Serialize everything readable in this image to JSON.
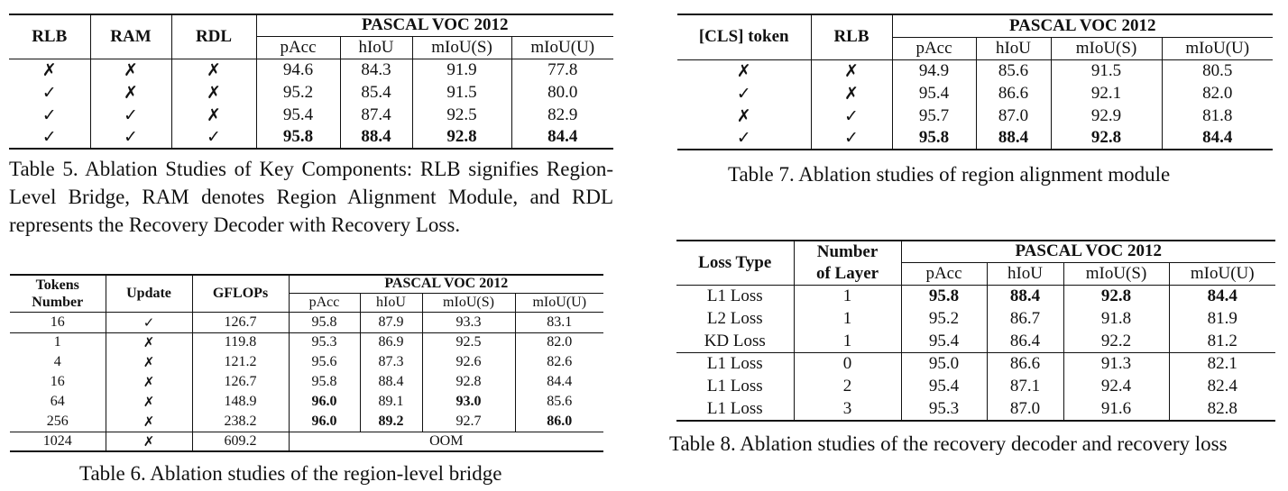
{
  "table5": {
    "headers": {
      "rlb": "RLB",
      "ram": "RAM",
      "rdl": "RDL",
      "group": "PASCAL VOC 2012",
      "metrics": [
        "pAcc",
        "hIoU",
        "mIoU(S)",
        "mIoU(U)"
      ]
    },
    "rows": [
      {
        "rlb": "✗",
        "ram": "✗",
        "rdl": "✗",
        "vals": [
          "94.6",
          "84.3",
          "91.9",
          "77.8"
        ]
      },
      {
        "rlb": "✓",
        "ram": "✗",
        "rdl": "✗",
        "vals": [
          "95.2",
          "85.4",
          "91.5",
          "80.0"
        ]
      },
      {
        "rlb": "✓",
        "ram": "✓",
        "rdl": "✗",
        "vals": [
          "95.4",
          "87.4",
          "92.5",
          "82.9"
        ]
      },
      {
        "rlb": "✓",
        "ram": "✓",
        "rdl": "✓",
        "vals": [
          "95.8",
          "88.4",
          "92.8",
          "84.4"
        ]
      }
    ],
    "caption": "Table 5.  Ablation Studies of Key Components: RLB signifies Region-Level Bridge, RAM denotes Region Alignment Module, and RDL represents the Recovery Decoder with Recovery Loss."
  },
  "table6": {
    "headers": {
      "tokens_1": "Tokens",
      "tokens_2": "Number",
      "update": "Update",
      "gflops": "GFLOPs",
      "group": "PASCAL VOC 2012",
      "metrics": [
        "pAcc",
        "hIoU",
        "mIoU(S)",
        "mIoU(U)"
      ]
    },
    "rows": [
      {
        "tokens": "16",
        "update": "✓",
        "gflops": "126.7",
        "vals": [
          "95.8",
          "87.9",
          "93.3",
          "83.1"
        ]
      },
      {
        "tokens": "1",
        "update": "✗",
        "gflops": "119.8",
        "vals": [
          "95.3",
          "86.9",
          "92.5",
          "82.0"
        ]
      },
      {
        "tokens": "4",
        "update": "✗",
        "gflops": "121.2",
        "vals": [
          "95.6",
          "87.3",
          "92.6",
          "82.6"
        ]
      },
      {
        "tokens": "16",
        "update": "✗",
        "gflops": "126.7",
        "vals": [
          "95.8",
          "88.4",
          "92.8",
          "84.4"
        ]
      },
      {
        "tokens": "64",
        "update": "✗",
        "gflops": "148.9",
        "vals": [
          "96.0",
          "89.1",
          "93.0",
          "85.6"
        ]
      },
      {
        "tokens": "256",
        "update": "✗",
        "gflops": "238.2",
        "vals": [
          "96.0",
          "89.2",
          "92.7",
          "86.0"
        ]
      },
      {
        "tokens": "1024",
        "update": "✗",
        "gflops": "609.2",
        "oom": "OOM"
      }
    ],
    "caption": "Table 6. Ablation studies of the region-level bridge"
  },
  "table7": {
    "headers": {
      "cls": "[CLS] token",
      "rlb": "RLB",
      "group": "PASCAL VOC 2012",
      "metrics": [
        "pAcc",
        "hIoU",
        "mIoU(S)",
        "mIoU(U)"
      ]
    },
    "rows": [
      {
        "cls": "✗",
        "rlb": "✗",
        "vals": [
          "94.9",
          "85.6",
          "91.5",
          "80.5"
        ]
      },
      {
        "cls": "✓",
        "rlb": "✗",
        "vals": [
          "95.4",
          "86.6",
          "92.1",
          "82.0"
        ]
      },
      {
        "cls": "✗",
        "rlb": "✓",
        "vals": [
          "95.7",
          "87.0",
          "92.9",
          "81.8"
        ]
      },
      {
        "cls": "✓",
        "rlb": "✓",
        "vals": [
          "95.8",
          "88.4",
          "92.8",
          "84.4"
        ]
      }
    ],
    "caption": "Table 7. Ablation studies of region alignment module"
  },
  "table8": {
    "headers": {
      "loss": "Loss Type",
      "layer_1": "Number",
      "layer_2": "of Layer",
      "group": "PASCAL VOC 2012",
      "metrics": [
        "pAcc",
        "hIoU",
        "mIoU(S)",
        "mIoU(U)"
      ]
    },
    "rows": [
      {
        "loss": "L1 Loss",
        "layers": "1",
        "vals": [
          "95.8",
          "88.4",
          "92.8",
          "84.4"
        ]
      },
      {
        "loss": "L2 Loss",
        "layers": "1",
        "vals": [
          "95.2",
          "86.7",
          "91.8",
          "81.9"
        ]
      },
      {
        "loss": "KD Loss",
        "layers": "1",
        "vals": [
          "95.4",
          "86.4",
          "92.2",
          "81.2"
        ]
      },
      {
        "loss": "L1 Loss",
        "layers": "0",
        "vals": [
          "95.0",
          "86.6",
          "91.3",
          "82.1"
        ]
      },
      {
        "loss": "L1 Loss",
        "layers": "2",
        "vals": [
          "95.4",
          "87.1",
          "92.4",
          "82.4"
        ]
      },
      {
        "loss": "L1 Loss",
        "layers": "3",
        "vals": [
          "95.3",
          "87.0",
          "91.6",
          "82.8"
        ]
      }
    ],
    "caption": "Table 8.  Ablation studies of the recovery decoder and recovery loss"
  }
}
